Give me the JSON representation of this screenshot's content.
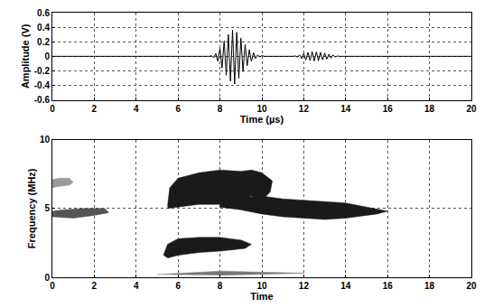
{
  "chart_data": [
    {
      "type": "line",
      "x_label": "Time (µs)",
      "y_label": "Amplitude (V)",
      "xlim": [
        0,
        20
      ],
      "xticks": [
        0,
        2,
        4,
        6,
        8,
        10,
        12,
        14,
        16,
        18,
        20
      ],
      "ylim": [
        -0.6,
        0.6
      ],
      "yticks": [
        -0.6,
        -0.4,
        -0.2,
        0,
        0.2,
        0.4,
        0.6
      ],
      "grid": true,
      "series": [
        {
          "color": "#000000",
          "x": [
            0,
            7.5,
            7.6,
            7.7,
            7.8,
            7.9,
            8.0,
            8.1,
            8.2,
            8.3,
            8.4,
            8.5,
            8.6,
            8.7,
            8.8,
            8.9,
            9.0,
            9.1,
            9.2,
            9.3,
            9.4,
            9.5,
            9.6,
            9.7,
            9.8,
            9.9,
            10.0,
            10.1,
            11.5,
            11.6,
            11.7,
            11.8,
            11.9,
            12.0,
            12.1,
            12.2,
            12.3,
            12.4,
            12.5,
            12.6,
            12.7,
            12.8,
            12.9,
            13.0,
            13.1,
            13.2,
            13.3,
            13.4,
            13.5,
            13.6,
            13.7,
            20
          ],
          "values": [
            0,
            0,
            0.01,
            -0.02,
            0.04,
            -0.07,
            0.11,
            -0.16,
            0.21,
            -0.26,
            0.3,
            -0.34,
            0.36,
            -0.38,
            0.33,
            -0.3,
            0.25,
            -0.21,
            0.16,
            -0.13,
            0.09,
            -0.07,
            0.05,
            -0.03,
            0.02,
            -0.01,
            0.01,
            0,
            0,
            0.005,
            -0.01,
            0.02,
            -0.03,
            0.04,
            -0.05,
            0.055,
            -0.06,
            0.065,
            -0.065,
            0.06,
            -0.06,
            0.055,
            -0.05,
            0.045,
            -0.04,
            0.03,
            -0.025,
            0.02,
            -0.01,
            0.005,
            0,
            0
          ]
        }
      ]
    },
    {
      "type": "area",
      "x_label": "Time",
      "y_label": "Frequency (MHz)",
      "xlim": [
        0,
        20
      ],
      "xticks": [
        0,
        2,
        4,
        6,
        8,
        10,
        12,
        14,
        16,
        18,
        20
      ],
      "ylim": [
        0,
        10
      ],
      "yticks": [
        0,
        5,
        10
      ],
      "grid": true,
      "series": [
        {
          "color": "#9a9a9a",
          "x": [
            0,
            0.3,
            0.8,
            1.0,
            0.8,
            0.3,
            0
          ],
          "values": [
            6.5,
            6.6,
            6.7,
            6.9,
            7.2,
            7.2,
            7.1
          ]
        },
        {
          "color": "#555555",
          "x": [
            0,
            1,
            2,
            2.7,
            2.5,
            1.5,
            0.5,
            0
          ],
          "values": [
            4.4,
            4.3,
            4.5,
            4.7,
            5.0,
            5.0,
            4.9,
            4.8
          ]
        },
        {
          "color": "#1a1a1a",
          "x": [
            5.5,
            5.6,
            6,
            7,
            8,
            9,
            9.5,
            10,
            10.5,
            10.4,
            10,
            9.5,
            9,
            8,
            7,
            6,
            5.5
          ],
          "values": [
            5.2,
            6.5,
            7.2,
            7.6,
            7.8,
            7.7,
            7.8,
            7.6,
            7.0,
            6.2,
            5.6,
            5.9,
            5.6,
            5.3,
            5.3,
            5.1,
            5.0
          ]
        },
        {
          "color": "#1a1a1a",
          "x": [
            8,
            9,
            10,
            11,
            12,
            13,
            14,
            15,
            16,
            15.5,
            14,
            13,
            12,
            11,
            10,
            9,
            8
          ],
          "values": [
            5.7,
            5.8,
            5.9,
            5.7,
            5.6,
            5.5,
            5.4,
            5.1,
            4.8,
            4.6,
            4.3,
            4.2,
            4.3,
            4.4,
            4.6,
            4.9,
            5.1
          ]
        },
        {
          "color": "#1a1a1a",
          "x": [
            5.3,
            5.5,
            6,
            7,
            8,
            9,
            9.5,
            9.2,
            8,
            7,
            6,
            5.5
          ],
          "values": [
            1.6,
            2.4,
            2.8,
            2.9,
            2.9,
            2.7,
            2.4,
            2.1,
            1.9,
            1.8,
            1.6,
            1.4
          ]
        },
        {
          "color": "#777777",
          "x": [
            5,
            8,
            12,
            8
          ],
          "values": [
            0.2,
            0.45,
            0.3,
            0.15
          ]
        }
      ]
    }
  ]
}
